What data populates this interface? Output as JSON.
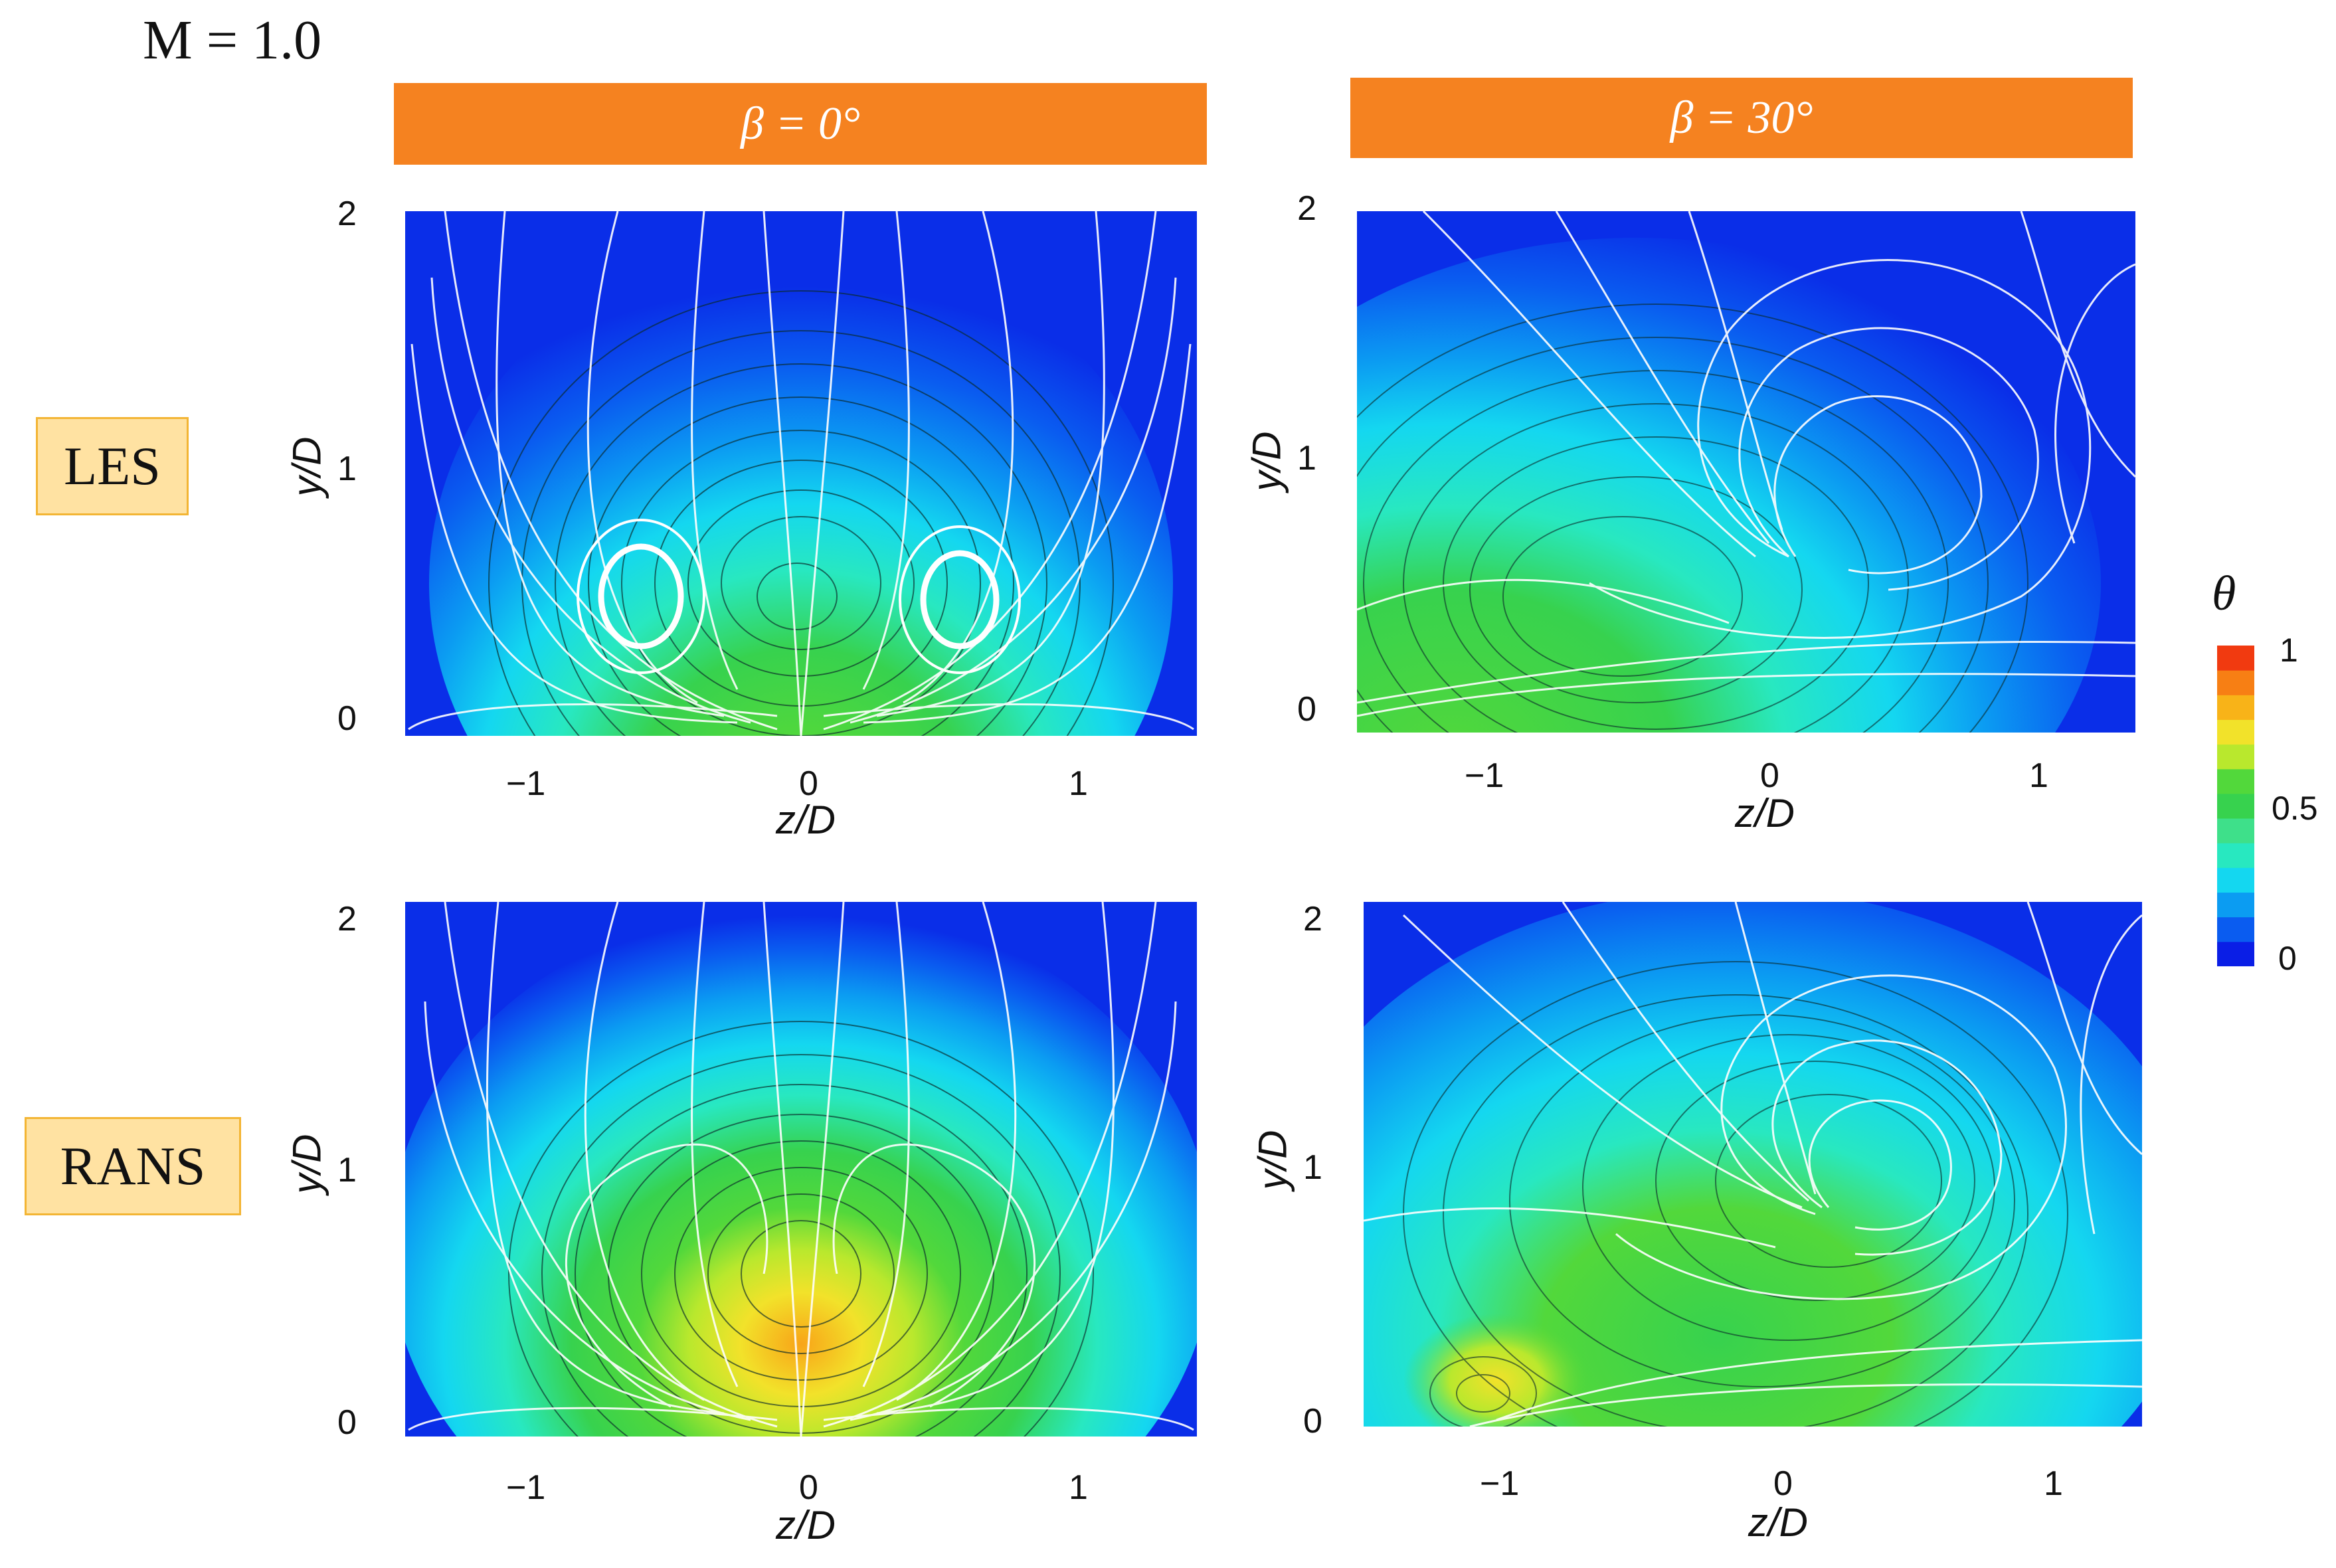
{
  "figure": {
    "mach_label": "M = 1.0",
    "columns": [
      {
        "label": "β = 0°"
      },
      {
        "label": "β = 30°"
      }
    ],
    "rows": [
      {
        "label": "LES"
      },
      {
        "label": "RANS"
      }
    ],
    "panels": [
      {
        "row": "LES",
        "column": "β = 0°"
      },
      {
        "row": "LES",
        "column": "β = 30°"
      },
      {
        "row": "RANS",
        "column": "β = 0°"
      },
      {
        "row": "RANS",
        "column": "β = 30°"
      }
    ],
    "x_axis": {
      "label": "z/D",
      "ticks": [
        "−1",
        "0",
        "1"
      ]
    },
    "y_axis": {
      "label": "y/D",
      "ticks": [
        "2",
        "1",
        "0"
      ]
    },
    "colorbar": {
      "title": "θ",
      "ticks": [
        "1",
        "0.5",
        "0"
      ],
      "colors": [
        "#0a1ee6",
        "#0a5cf0",
        "#0b9cf2",
        "#14d7f0",
        "#28e8c0",
        "#3ee08a",
        "#37d24e",
        "#52d83b",
        "#b9e82d",
        "#f2e22a",
        "#f8b318",
        "#f77f14",
        "#f13a10"
      ]
    }
  }
}
